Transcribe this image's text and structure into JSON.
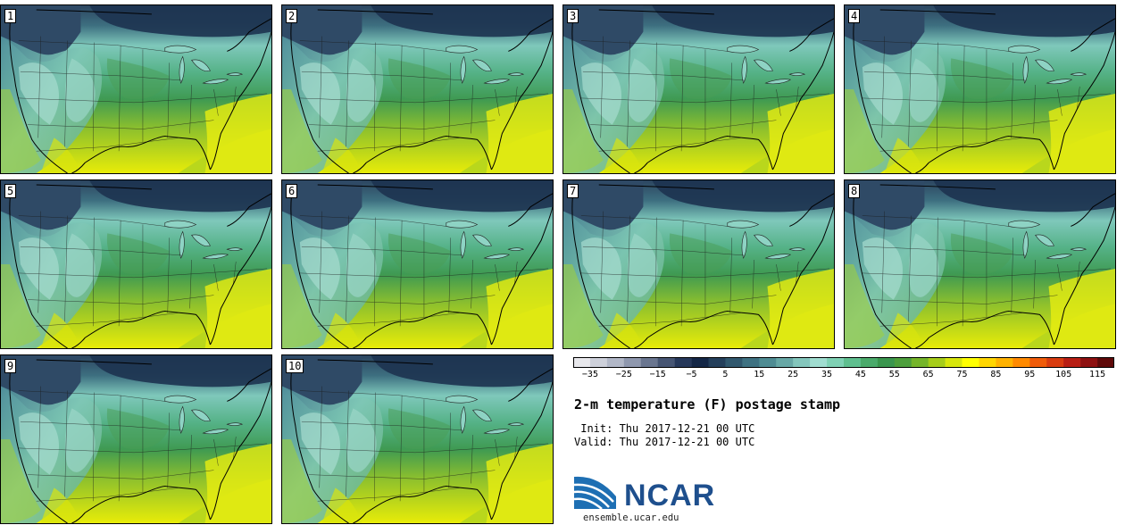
{
  "panels": [
    {
      "label": "1"
    },
    {
      "label": "2"
    },
    {
      "label": "3"
    },
    {
      "label": "4"
    },
    {
      "label": "5"
    },
    {
      "label": "6"
    },
    {
      "label": "7"
    },
    {
      "label": "8"
    },
    {
      "label": "9"
    },
    {
      "label": "10"
    }
  ],
  "colorbar": {
    "ticks": [
      "−35",
      "−25",
      "−15",
      "−5",
      "5",
      "15",
      "25",
      "35",
      "45",
      "55",
      "65",
      "75",
      "85",
      "95",
      "105",
      "115"
    ],
    "colors": [
      "#e8e8ec",
      "#cdd0da",
      "#b1b7c7",
      "#8f98ae",
      "#6a7690",
      "#465573",
      "#26385a",
      "#142746",
      "#243f5b",
      "#31586e",
      "#3f7282",
      "#4f8c93",
      "#68a8a6",
      "#84c6bc",
      "#a0ddd0",
      "#7fd1b4",
      "#5fbf8f",
      "#4aaa6b",
      "#3a964e",
      "#4d9f3c",
      "#75b52a",
      "#a6cd1a",
      "#d7e60c",
      "#ffff00",
      "#ffd600",
      "#ffb200",
      "#ff8a00",
      "#f05c0a",
      "#d83c10",
      "#b81e14",
      "#8e1010",
      "#5e0808"
    ]
  },
  "title": "2-m temperature (F) postage stamp",
  "init": " Init: Thu 2017-12-21 00 UTC",
  "valid": "Valid: Thu 2017-12-21 00 UTC",
  "logo": {
    "text": "NCAR",
    "url": "ensemble.ucar.edu",
    "brand_color": "#1e4f8d"
  }
}
